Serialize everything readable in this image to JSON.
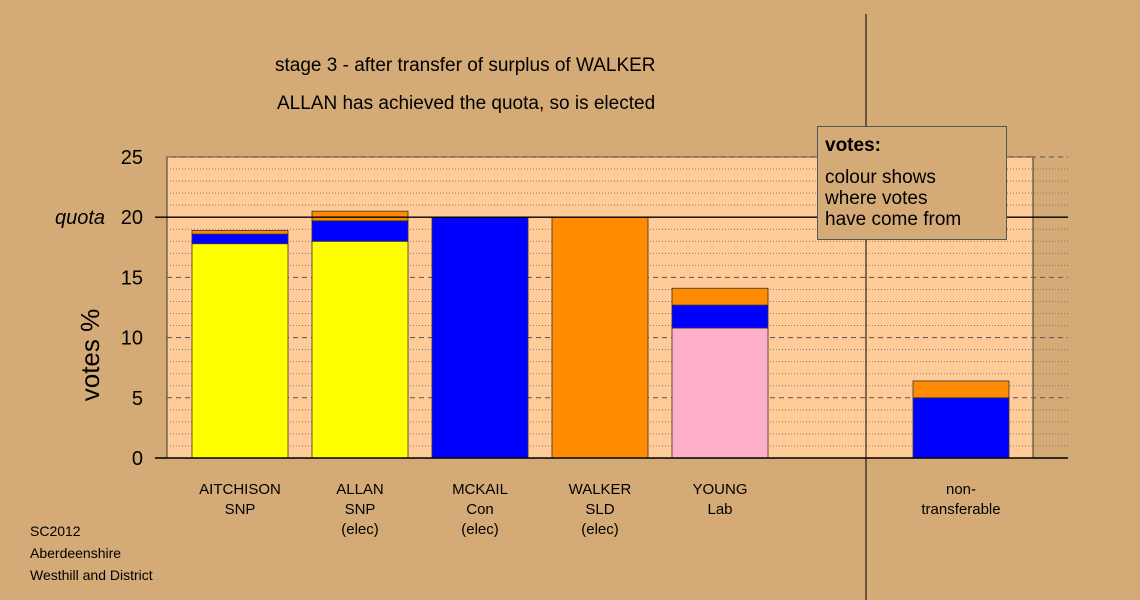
{
  "title_line1": "stage 3 - after transfer of surplus of WALKER",
  "title_line2": "ALLAN has achieved the quota, so is elected",
  "footer": [
    "SC2012",
    "Aberdeenshire",
    "Westhill and District"
  ],
  "legend": {
    "title": "votes:",
    "body": "colour shows\nwhere votes\nhave come from"
  },
  "colors": {
    "background": "#d4aa76",
    "plot_area": "#ffcc99",
    "SNP": "#ffff00",
    "Con": "#0000ff",
    "SLD": "#ff8c00",
    "Lab": "#ffb0c8"
  },
  "chart_data": {
    "type": "bar",
    "stacked": true,
    "ylabel": "votes %",
    "ylim": [
      0,
      25
    ],
    "yticks": [
      0,
      5,
      10,
      15,
      20,
      25
    ],
    "quota": {
      "value": 20,
      "label": "quota"
    },
    "categories": [
      {
        "name": "AITCHISON",
        "party": "SNP",
        "note": ""
      },
      {
        "name": "ALLAN",
        "party": "SNP",
        "note": "(elec)"
      },
      {
        "name": "MCKAIL",
        "party": "Con",
        "note": "(elec)"
      },
      {
        "name": "WALKER",
        "party": "SLD",
        "note": "(elec)"
      },
      {
        "name": "YOUNG",
        "party": "Lab",
        "note": ""
      },
      {
        "name": "non-",
        "party": "transferable",
        "note": ""
      }
    ],
    "segments": [
      [
        {
          "color": "#ffff00",
          "value": 17.8
        },
        {
          "color": "#0000ff",
          "value": 0.8
        },
        {
          "color": "#ff8c00",
          "value": 0.3
        }
      ],
      [
        {
          "color": "#ffff00",
          "value": 18.0
        },
        {
          "color": "#0000ff",
          "value": 1.7
        },
        {
          "color": "#ff8c00",
          "value": 0.8
        }
      ],
      [
        {
          "color": "#0000ff",
          "value": 20.0
        }
      ],
      [
        {
          "color": "#ff8c00",
          "value": 20.0
        }
      ],
      [
        {
          "color": "#ffb0c8",
          "value": 10.8
        },
        {
          "color": "#0000ff",
          "value": 1.9
        },
        {
          "color": "#ff8c00",
          "value": 1.4
        }
      ],
      [
        {
          "color": "#0000ff",
          "value": 5.0
        },
        {
          "color": "#ff8c00",
          "value": 1.4
        }
      ]
    ]
  }
}
